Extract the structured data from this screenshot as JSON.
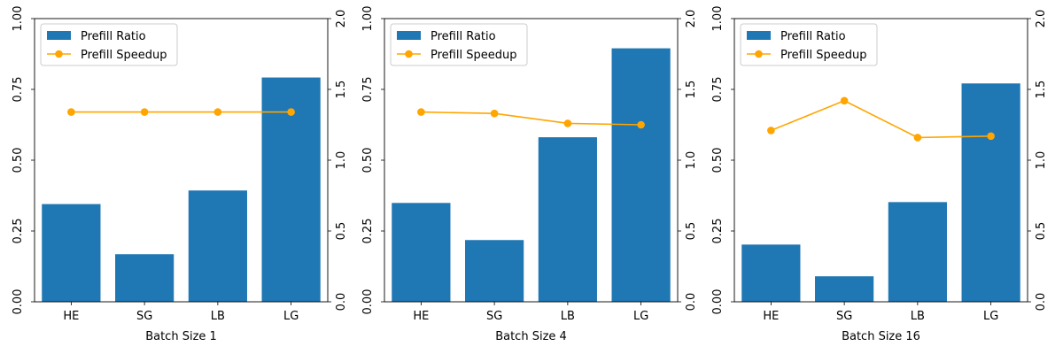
{
  "chart_data": [
    {
      "type": "bar",
      "categories": [
        "HE",
        "SG",
        "LB",
        "LG"
      ],
      "xlabel": "Batch Size 1",
      "ylim": [
        0,
        1.0
      ],
      "y2lim": [
        0,
        2.0
      ],
      "yticks": [
        "0.00",
        "0.25",
        "0.50",
        "0.75",
        "1.00"
      ],
      "y2ticks": [
        "0.0",
        "0.5",
        "1.0",
        "1.5",
        "2.0"
      ],
      "legend_position": "top-left",
      "grid": false,
      "series": [
        {
          "name": "Prefill Ratio",
          "kind": "bar",
          "axis": "left",
          "color": "#1f77b4",
          "values": [
            0.345,
            0.168,
            0.393,
            0.792
          ]
        },
        {
          "name": "Prefill Speedup",
          "kind": "line",
          "axis": "right",
          "color": "#ffa500",
          "values": [
            1.34,
            1.34,
            1.34,
            1.34
          ]
        }
      ]
    },
    {
      "type": "bar",
      "categories": [
        "HE",
        "SG",
        "LB",
        "LG"
      ],
      "xlabel": "Batch Size 4",
      "ylim": [
        0,
        1.0
      ],
      "y2lim": [
        0,
        2.0
      ],
      "yticks": [
        "0.00",
        "0.25",
        "0.50",
        "0.75",
        "1.00"
      ],
      "y2ticks": [
        "0.0",
        "0.5",
        "1.0",
        "1.5",
        "2.0"
      ],
      "legend_position": "top-left",
      "grid": false,
      "series": [
        {
          "name": "Prefill Ratio",
          "kind": "bar",
          "axis": "left",
          "color": "#1f77b4",
          "values": [
            0.349,
            0.218,
            0.581,
            0.895
          ]
        },
        {
          "name": "Prefill Speedup",
          "kind": "line",
          "axis": "right",
          "color": "#ffa500",
          "values": [
            1.34,
            1.33,
            1.26,
            1.25
          ]
        }
      ]
    },
    {
      "type": "bar",
      "categories": [
        "HE",
        "SG",
        "LB",
        "LG"
      ],
      "xlabel": "Batch Size 16",
      "ylim": [
        0,
        1.0
      ],
      "y2lim": [
        0,
        2.0
      ],
      "yticks": [
        "0.00",
        "0.25",
        "0.50",
        "0.75",
        "1.00"
      ],
      "y2ticks": [
        "0.0",
        "0.5",
        "1.0",
        "1.5",
        "2.0"
      ],
      "legend_position": "top-left",
      "grid": false,
      "series": [
        {
          "name": "Prefill Ratio",
          "kind": "bar",
          "axis": "left",
          "color": "#1f77b4",
          "values": [
            0.202,
            0.09,
            0.352,
            0.771
          ]
        },
        {
          "name": "Prefill Speedup",
          "kind": "line",
          "axis": "right",
          "color": "#ffa500",
          "values": [
            1.21,
            1.42,
            1.16,
            1.17
          ]
        }
      ]
    }
  ]
}
